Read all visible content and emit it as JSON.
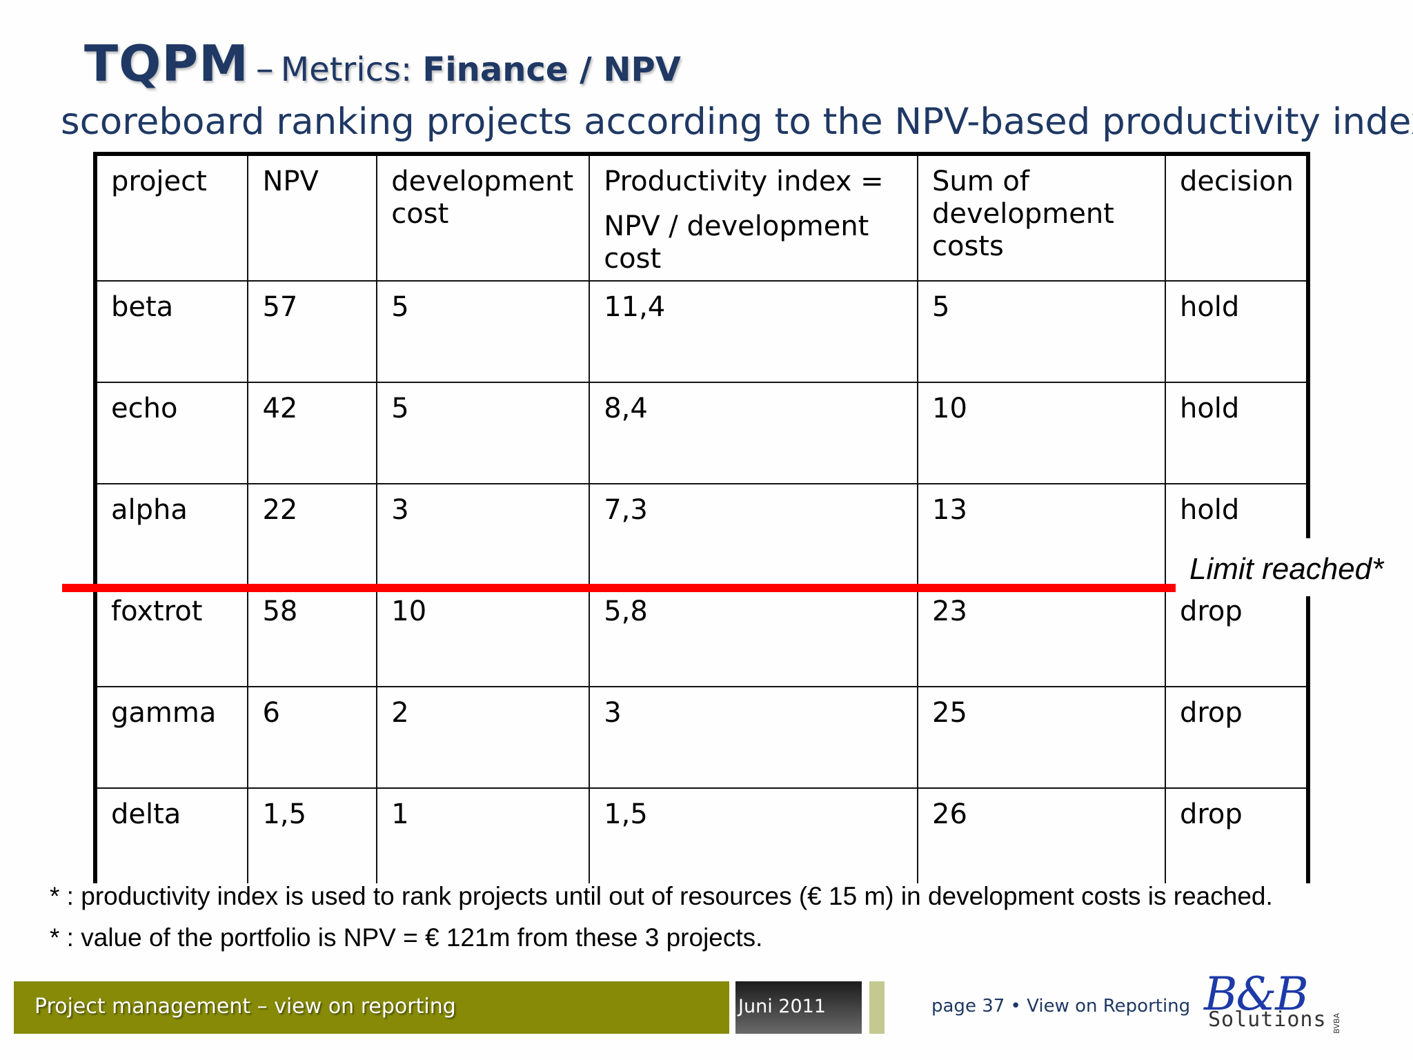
{
  "slide": {
    "title_main": "TQPM",
    "title_dash": "–",
    "title_sub_prefix": "Metrics: ",
    "title_sub_bold": "Finance / NPV",
    "subtitle": "scoreboard ranking projects according to the NPV-based productivity index"
  },
  "table": {
    "headers": {
      "project": "project",
      "npv": "NPV",
      "dev_cost": "development cost",
      "pi_line1": "Productivity index =",
      "pi_line2": "NPV / development cost",
      "sum_costs": "Sum of development costs",
      "decision": "decision"
    },
    "rows": [
      {
        "project": "beta",
        "npv": "57",
        "dev_cost": "5",
        "pi": "11,4",
        "sum": "5",
        "decision": "hold"
      },
      {
        "project": "echo",
        "npv": "42",
        "dev_cost": "5",
        "pi": "8,4",
        "sum": "10",
        "decision": "hold"
      },
      {
        "project": "alpha",
        "npv": "22",
        "dev_cost": "3",
        "pi": "7,3",
        "sum": "13",
        "decision": "hold"
      },
      {
        "project": "foxtrot",
        "npv": "58",
        "dev_cost": "10",
        "pi": "5,8",
        "sum": "23",
        "decision": "drop"
      },
      {
        "project": "gamma",
        "npv": "6",
        "dev_cost": "2",
        "pi": "3",
        "sum": "25",
        "decision": "drop"
      },
      {
        "project": "delta",
        "npv": "1,5",
        "dev_cost": "1",
        "pi": "1,5",
        "sum": "26",
        "decision": "drop"
      }
    ]
  },
  "limit_label": "Limit reached*",
  "limit_color": "#ff0000",
  "footnotes": [
    "* : productivity index is used to rank projects until out of resources (€ 15 m) in development costs is reached.",
    "* : value of the portfolio is NPV = € 121m from these 3 projects."
  ],
  "footer": {
    "left_text": "Project management – view on reporting",
    "date": "Juni 2011",
    "page_info": "page  37 • View on Reporting",
    "bar_color": "#868a06",
    "logo_main": "B&B",
    "logo_sub": "Solutions",
    "logo_bvba": "BVBA"
  }
}
